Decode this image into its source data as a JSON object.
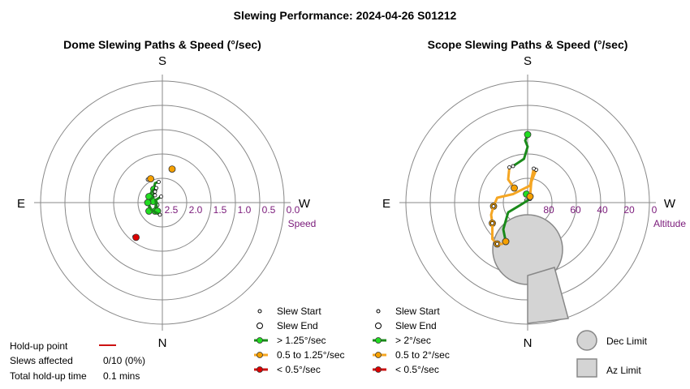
{
  "title": "Slewing Performance: 2024-04-26 S01212",
  "colors": {
    "fast": "#1a8a1a",
    "fast_marker": "#22dd22",
    "medium": "#f5a623",
    "medium_marker": "#f5a000",
    "slow": "#cc1111",
    "slow_marker": "#dd0000",
    "grid": "#888888",
    "tick_label": "#7a1a7a",
    "limit_fill": "#d4d4d4",
    "limit_stroke": "#888888"
  },
  "chart_data": [
    {
      "type": "scatter",
      "projection": "polar",
      "title": "Dome Slewing Paths & Speed (°/sec)",
      "directions": {
        "top": "S",
        "bottom": "N",
        "left": "E",
        "right": "W"
      },
      "radial_label": "Speed",
      "radial_ticks": [
        "2.5",
        "2.0",
        "1.5",
        "1.0",
        "0.5",
        "0.0"
      ],
      "paths": [
        {
          "speed_class": "fast",
          "start": [
            -0.15,
            0.85
          ],
          "end": [
            -0.35,
            0.55
          ],
          "points": [
            [
              -0.15,
              0.85
            ],
            [
              -0.3,
              0.8
            ],
            [
              -0.35,
              0.55
            ]
          ]
        },
        {
          "speed_class": "fast",
          "start": [
            -0.25,
            0.6
          ],
          "end": [
            -0.55,
            0.25
          ],
          "points": [
            [
              -0.25,
              0.6
            ],
            [
              -0.42,
              0.48
            ],
            [
              -0.55,
              0.25
            ]
          ]
        },
        {
          "speed_class": "fast",
          "start": [
            -0.3,
            0.45
          ],
          "end": [
            -0.38,
            0.05
          ],
          "points": [
            [
              -0.3,
              0.45
            ],
            [
              -0.4,
              0.3
            ],
            [
              -0.38,
              0.05
            ]
          ]
        },
        {
          "speed_class": "fast",
          "start": [
            -0.3,
            0.3
          ],
          "end": [
            -0.55,
            -0.35
          ],
          "points": [
            [
              -0.3,
              0.3
            ],
            [
              -0.52,
              0.1
            ],
            [
              -0.55,
              -0.35
            ]
          ]
        },
        {
          "speed_class": "fast",
          "start": [
            -0.2,
            -0.1
          ],
          "end": [
            -0.3,
            -0.35
          ],
          "points": [
            [
              -0.2,
              -0.1
            ],
            [
              -0.25,
              0.05
            ],
            [
              -0.3,
              -0.35
            ]
          ]
        },
        {
          "speed_class": "fast",
          "start": [
            -0.05,
            0.25
          ],
          "end": [
            -0.2,
            -0.35
          ],
          "points": [
            [
              -0.05,
              0.25
            ],
            [
              -0.28,
              0.1
            ],
            [
              -0.2,
              -0.35
            ]
          ]
        },
        {
          "speed_class": "fast",
          "start": [
            -0.1,
            -0.5
          ],
          "end": [
            -0.6,
            0.0
          ],
          "points": [
            [
              -0.1,
              -0.5
            ],
            [
              -0.45,
              -0.3
            ],
            [
              -0.6,
              0.0
            ]
          ]
        },
        {
          "speed_class": "medium",
          "start": [
            0.45,
            1.35
          ],
          "end": [
            0.4,
            1.38
          ],
          "points": [
            [
              0.45,
              1.35
            ],
            [
              0.4,
              1.38
            ]
          ]
        },
        {
          "speed_class": "medium",
          "start": [
            -0.6,
            0.95
          ],
          "end": [
            -0.48,
            0.98
          ],
          "points": [
            [
              -0.6,
              0.95
            ],
            [
              -0.48,
              0.98
            ]
          ]
        },
        {
          "speed_class": "slow",
          "start": [
            -1.15,
            -1.4
          ],
          "end": [
            -1.08,
            -1.43
          ],
          "points": [
            [
              -1.15,
              -1.4
            ],
            [
              -1.08,
              -1.43
            ]
          ]
        }
      ],
      "legend": [
        {
          "label": "Slew Start",
          "symbol": "small-circle"
        },
        {
          "label": "Slew End",
          "symbol": "circle"
        },
        {
          "label": "> 1.25°/sec",
          "symbol": "line-green"
        },
        {
          "label": "0.5 to 1.25°/sec",
          "symbol": "line-orange"
        },
        {
          "label": "< 0.5°/sec",
          "symbol": "line-red"
        }
      ]
    },
    {
      "type": "scatter",
      "projection": "polar",
      "title": "Scope Slewing Paths & Speed (°/sec)",
      "directions": {
        "top": "S",
        "bottom": "N",
        "left": "E",
        "right": "W"
      },
      "radial_label": "Altitude",
      "radial_ticks": [
        "80",
        "60",
        "40",
        "20",
        "0"
      ],
      "paths": [
        {
          "speed_class": "fast",
          "start": [
            -0.6,
            1.5
          ],
          "end": [
            0.0,
            2.8
          ],
          "points": [
            [
              -0.6,
              1.5
            ],
            [
              -0.15,
              1.8
            ],
            [
              0.0,
              2.3
            ],
            [
              -0.1,
              2.55
            ],
            [
              0.0,
              2.8
            ]
          ]
        },
        {
          "speed_class": "fast",
          "start": [
            -0.05,
            0.1
          ],
          "end": [
            -0.05,
            0.35
          ],
          "points": [
            [
              -0.05,
              0.1
            ],
            [
              0.05,
              0.2
            ],
            [
              -0.05,
              0.35
            ]
          ]
        },
        {
          "speed_class": "fast",
          "start": [
            0.1,
            0.15
          ],
          "end": [
            -0.9,
            -1.6
          ],
          "points": [
            [
              0.1,
              0.15
            ],
            [
              -0.3,
              -0.1
            ],
            [
              -0.8,
              -0.4
            ],
            [
              -1.0,
              -1.1
            ],
            [
              -0.9,
              -1.6
            ]
          ]
        },
        {
          "speed_class": "medium",
          "start": [
            -0.75,
            1.45
          ],
          "end": [
            -0.55,
            0.6
          ],
          "points": [
            [
              -0.75,
              1.45
            ],
            [
              -0.8,
              0.95
            ],
            [
              -0.55,
              0.6
            ]
          ]
        },
        {
          "speed_class": "medium",
          "start": [
            0.35,
            1.35
          ],
          "end": [
            0.1,
            0.25
          ],
          "points": [
            [
              0.35,
              1.35
            ],
            [
              0.15,
              0.85
            ],
            [
              0.1,
              0.25
            ]
          ]
        },
        {
          "speed_class": "medium",
          "start": [
            0.25,
            1.4
          ],
          "end": [
            -1.4,
            -0.15
          ],
          "points": [
            [
              0.25,
              1.4
            ],
            [
              0.1,
              0.7
            ],
            [
              -0.6,
              0.35
            ],
            [
              -1.25,
              0.2
            ],
            [
              -1.4,
              -0.15
            ]
          ]
        },
        {
          "speed_class": "medium",
          "start": [
            -1.4,
            -0.15
          ],
          "end": [
            -1.45,
            -0.85
          ],
          "points": [
            [
              -1.4,
              -0.15
            ],
            [
              -1.5,
              -0.5
            ],
            [
              -1.45,
              -0.85
            ]
          ]
        },
        {
          "speed_class": "medium",
          "start": [
            -1.45,
            -0.85
          ],
          "end": [
            -1.25,
            -1.7
          ],
          "points": [
            [
              -1.45,
              -0.85
            ],
            [
              -1.45,
              -1.5
            ],
            [
              -1.25,
              -1.7
            ]
          ]
        },
        {
          "speed_class": "medium",
          "start": [
            -1.25,
            -1.7
          ],
          "end": [
            -0.9,
            -1.6
          ],
          "points": [
            [
              -1.25,
              -1.7
            ],
            [
              -1.05,
              -1.7
            ],
            [
              -0.9,
              -1.6
            ]
          ]
        }
      ],
      "limits": {
        "dec_label": "Dec Limit",
        "az_label": "Az Limit"
      },
      "legend": [
        {
          "label": "Slew Start",
          "symbol": "small-circle"
        },
        {
          "label": "Slew End",
          "symbol": "circle"
        },
        {
          "label": "> 2°/sec",
          "symbol": "line-green"
        },
        {
          "label": "0.5 to 2°/sec",
          "symbol": "line-orange"
        },
        {
          "label": "< 0.5°/sec",
          "symbol": "line-red"
        }
      ]
    }
  ],
  "holdup": {
    "point_label": "Hold-up point",
    "slews_label": "Slews affected",
    "slews_value": "0/10 (0%)",
    "time_label": "Total hold-up time",
    "time_value": "0.1 mins"
  }
}
